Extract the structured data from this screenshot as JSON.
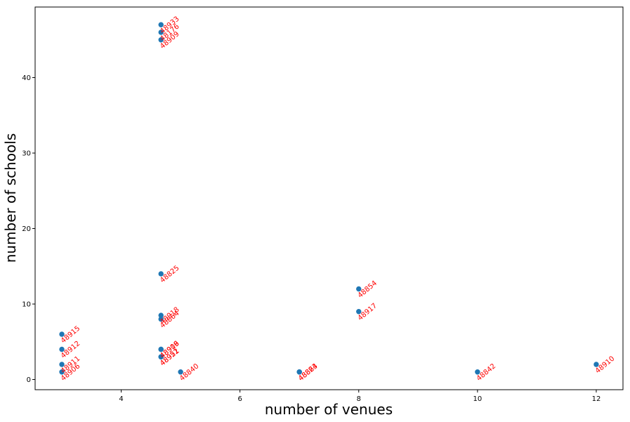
{
  "chart_data": {
    "type": "scatter",
    "title": "",
    "xlabel": "number of venues",
    "ylabel": "number of schools",
    "xlim": [
      2.55,
      12.45
    ],
    "ylim": [
      -1.35,
      49.35
    ],
    "xticks": [
      4,
      6,
      8,
      10,
      12
    ],
    "yticks": [
      0,
      10,
      20,
      30,
      40
    ],
    "grid": false,
    "legend": "none",
    "colors": {
      "point": "#1f77b4",
      "label": "#ff0000"
    },
    "points": [
      {
        "x": 4.67,
        "y": 47,
        "label": "48933"
      },
      {
        "x": 4.67,
        "y": 46,
        "label": "48176"
      },
      {
        "x": 4.67,
        "y": 45,
        "label": "48909"
      },
      {
        "x": 4.67,
        "y": 14,
        "label": "48825"
      },
      {
        "x": 4.67,
        "y": 8.5,
        "label": "48918"
      },
      {
        "x": 4.67,
        "y": 8,
        "label": "48864"
      },
      {
        "x": 4.67,
        "y": 4,
        "label": "48906"
      },
      {
        "x": 4.67,
        "y": 4,
        "label": "48919"
      },
      {
        "x": 4.67,
        "y": 3,
        "label": "48951"
      },
      {
        "x": 4.67,
        "y": 3,
        "label": "48922"
      },
      {
        "x": 3,
        "y": 6,
        "label": "48915"
      },
      {
        "x": 3,
        "y": 4,
        "label": "48912"
      },
      {
        "x": 3,
        "y": 2,
        "label": "48911"
      },
      {
        "x": 3,
        "y": 1,
        "label": "48906"
      },
      {
        "x": 5,
        "y": 1,
        "label": "48840"
      },
      {
        "x": 7,
        "y": 1,
        "label": "48823"
      },
      {
        "x": 7,
        "y": 1,
        "label": "48864"
      },
      {
        "x": 8,
        "y": 12,
        "label": "48854"
      },
      {
        "x": 8,
        "y": 9,
        "label": "48917"
      },
      {
        "x": 10,
        "y": 1,
        "label": "48842"
      },
      {
        "x": 12,
        "y": 2,
        "label": "48910"
      }
    ]
  }
}
